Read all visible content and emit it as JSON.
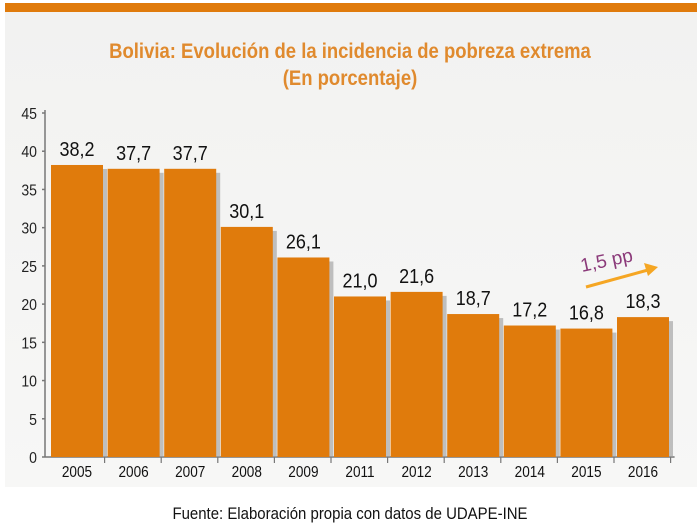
{
  "chart_data": {
    "type": "bar",
    "title": "Bolivia: Evolución de la incidencia de pobreza extrema",
    "subtitle": "(En porcentaje)",
    "xlabel": "",
    "ylabel": "",
    "categories": [
      "2005",
      "2006",
      "2007",
      "2008",
      "2009",
      "2011",
      "2012",
      "2013",
      "2014",
      "2015",
      "2016"
    ],
    "values": [
      38.2,
      37.7,
      37.7,
      30.1,
      26.1,
      21.0,
      21.6,
      18.7,
      17.2,
      16.8,
      18.3
    ],
    "value_labels": [
      "38,2",
      "37,7",
      "37,7",
      "30,1",
      "26,1",
      "21,0",
      "21,6",
      "18,7",
      "17,2",
      "16,8",
      "18,3"
    ],
    "ylim": [
      0,
      45
    ],
    "yticks": [
      0,
      5,
      10,
      15,
      20,
      25,
      30,
      35,
      40,
      45
    ],
    "grid": false,
    "bar_color": "#e07b0c",
    "annotation": {
      "text": "1,5 pp",
      "color": "#8b3a7a",
      "arrow_color": "#f5a623",
      "from_category": "2015",
      "to_category": "2016"
    },
    "source": "Fuente: Elaboración propia con datos de UDAPE-INE"
  }
}
